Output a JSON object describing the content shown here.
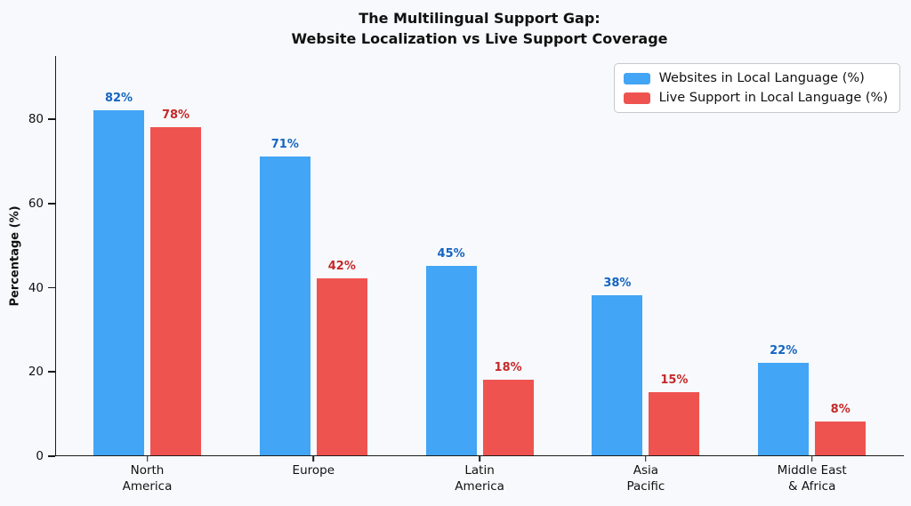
{
  "page": {
    "background": "#f7f9fc",
    "spine_color": "#1a1a1a"
  },
  "chart_data": {
    "type": "bar",
    "title_lines": [
      "The Multilingual Support Gap:",
      "Website Localization vs Live Support Coverage"
    ],
    "title": "The Multilingual Support Gap:\nWebsite Localization vs Live Support Coverage",
    "xlabel": "",
    "ylabel": "Percentage (%)",
    "categories": [
      "North\nAmerica",
      "Europe",
      "Latin\nAmerica",
      "Asia\nPacific",
      "Middle East\n& Africa"
    ],
    "series": [
      {
        "name": "Websites in Local Language (%)",
        "values": [
          82,
          71,
          45,
          38,
          22
        ],
        "labels": [
          "82%",
          "71%",
          "45%",
          "38%",
          "22%"
        ],
        "color": "#42A5F5",
        "label_color": "#1565C0"
      },
      {
        "name": "Live Support in Local Language (%)",
        "values": [
          78,
          42,
          18,
          15,
          8
        ],
        "labels": [
          "78%",
          "42%",
          "18%",
          "15%",
          "8%"
        ],
        "color": "#EF5350",
        "label_color": "#C62828"
      }
    ],
    "value_suffix": "%",
    "ylim": [
      0,
      95
    ],
    "yticks": [
      0,
      20,
      40,
      60,
      80
    ],
    "grid": false,
    "legend_position": "upper right"
  }
}
